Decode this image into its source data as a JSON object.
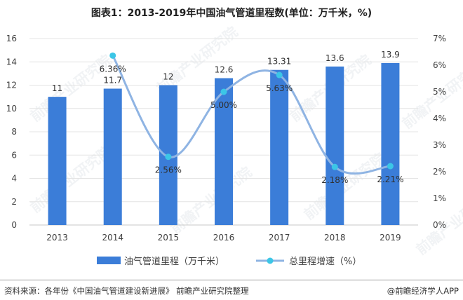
{
  "header": {
    "title": "图表1：2013-2019年中国油气管道里程数(单位：万千米，%)"
  },
  "footer": {
    "source": "资料来源：各年份《中国油气管道建设新进展》 前瞻产业研究院整理",
    "brand": "@前瞻经济学人APP"
  },
  "watermark": {
    "text": "前瞻产业研究院"
  },
  "chart_data": {
    "type": "bar",
    "title": "图表1：2013-2019年中国油气管道里程数(单位：万千米，%)",
    "categories": [
      "2013",
      "2014",
      "2015",
      "2016",
      "2017",
      "2018",
      "2019"
    ],
    "y_left": {
      "min": 0,
      "max": 16,
      "step": 2,
      "ticks": [
        "0",
        "2",
        "4",
        "6",
        "8",
        "10",
        "12",
        "14",
        "16"
      ]
    },
    "y_right": {
      "min": 0,
      "max": 7,
      "step": 1,
      "ticks": [
        "0%",
        "1%",
        "2%",
        "3%",
        "4%",
        "5%",
        "6%",
        "7%"
      ]
    },
    "grid": true,
    "legend_position": "bottom",
    "series": [
      {
        "name": "油气管道里程（万千米）",
        "type": "bar",
        "axis": "left",
        "color": "#3b7dd8",
        "values": [
          11,
          11.7,
          12,
          12.6,
          13.31,
          13.6,
          13.9
        ],
        "labels": [
          "11",
          "11.7",
          "12",
          "12.6",
          "13.31",
          "13.6",
          "13.9"
        ]
      },
      {
        "name": "总里程增速（%）",
        "type": "line",
        "axis": "right",
        "color": "#8fb4e3",
        "marker_color": "#3cc6e6",
        "values": [
          null,
          6.36,
          2.56,
          5.0,
          5.63,
          2.18,
          2.21
        ],
        "labels": [
          "",
          "6.36%",
          "2.56%",
          "5.00%",
          "5.63%",
          "2.18%",
          "2.21%"
        ]
      }
    ]
  }
}
